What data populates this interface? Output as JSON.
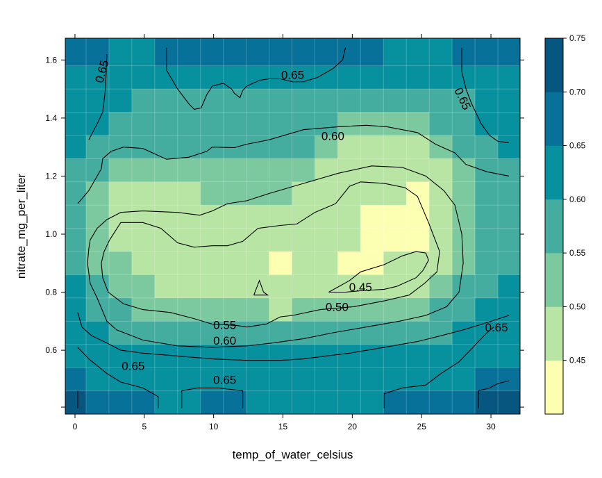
{
  "chart_data": {
    "type": "heatmap",
    "subtype": "levelplot-with-contours",
    "xlabel": "temp_of_water_celsius",
    "ylabel": "nitrate_mg_per_liter",
    "xlim": [
      -0.7,
      32.1
    ],
    "ylim": [
      0.38,
      1.675
    ],
    "x_ticks": [
      "0",
      "5",
      "10",
      "15",
      "20",
      "25",
      "30"
    ],
    "y_ticks": [
      "0.6",
      "0.8",
      "1.0",
      "1.2",
      "1.4",
      "1.6"
    ],
    "x_grid": [
      0,
      1.6,
      3.3,
      4.9,
      6.6,
      8.2,
      9.9,
      11.5,
      13.2,
      14.8,
      16.5,
      18.1,
      19.8,
      21.4,
      23.1,
      24.7,
      26.4,
      28.0,
      29.7,
      31.3
    ],
    "y_grid": [
      0.42,
      0.5,
      0.58,
      0.66,
      0.74,
      0.82,
      0.9,
      0.98,
      1.06,
      1.14,
      1.22,
      1.3,
      1.38,
      1.46,
      1.54,
      1.62
    ],
    "z_rows_top_to_bottom": [
      [
        0.66,
        0.66,
        0.64,
        0.64,
        0.66,
        0.66,
        0.66,
        0.66,
        0.66,
        0.66,
        0.66,
        0.66,
        0.66,
        0.67,
        0.64,
        0.64,
        0.64,
        0.66,
        0.66,
        0.66
      ],
      [
        0.66,
        0.66,
        0.64,
        0.64,
        0.64,
        0.66,
        0.66,
        0.66,
        0.66,
        0.64,
        0.64,
        0.64,
        0.64,
        0.64,
        0.64,
        0.64,
        0.64,
        0.66,
        0.66,
        0.66
      ],
      [
        0.66,
        0.66,
        0.62,
        0.62,
        0.62,
        0.64,
        0.66,
        0.64,
        0.64,
        0.64,
        0.62,
        0.62,
        0.62,
        0.62,
        0.62,
        0.62,
        0.62,
        0.66,
        0.64,
        0.64
      ],
      [
        0.66,
        0.66,
        0.62,
        0.62,
        0.62,
        0.62,
        0.62,
        0.62,
        0.62,
        0.62,
        0.62,
        0.62,
        0.62,
        0.62,
        0.62,
        0.62,
        0.62,
        0.62,
        0.66,
        0.66
      ],
      [
        0.62,
        0.62,
        0.62,
        0.62,
        0.62,
        0.62,
        0.62,
        0.62,
        0.62,
        0.62,
        0.62,
        0.62,
        0.62,
        0.62,
        0.62,
        0.62,
        0.62,
        0.62,
        0.64,
        0.64
      ],
      [
        0.62,
        0.62,
        0.62,
        0.58,
        0.58,
        0.58,
        0.58,
        0.58,
        0.58,
        0.58,
        0.58,
        0.58,
        0.58,
        0.58,
        0.58,
        0.58,
        0.58,
        0.58,
        0.62,
        0.62
      ],
      [
        0.62,
        0.62,
        0.58,
        0.58,
        0.58,
        0.58,
        0.58,
        0.58,
        0.58,
        0.58,
        0.58,
        0.58,
        0.54,
        0.54,
        0.54,
        0.54,
        0.58,
        0.58,
        0.62,
        0.62
      ],
      [
        0.62,
        0.58,
        0.58,
        0.58,
        0.58,
        0.58,
        0.58,
        0.58,
        0.58,
        0.58,
        0.58,
        0.54,
        0.48,
        0.48,
        0.48,
        0.48,
        0.54,
        0.58,
        0.58,
        0.62
      ],
      [
        0.58,
        0.58,
        0.54,
        0.54,
        0.54,
        0.54,
        0.54,
        0.54,
        0.54,
        0.54,
        0.54,
        0.48,
        0.48,
        0.48,
        0.48,
        0.48,
        0.48,
        0.54,
        0.58,
        0.58
      ],
      [
        0.58,
        0.54,
        0.48,
        0.48,
        0.48,
        0.48,
        0.54,
        0.54,
        0.54,
        0.54,
        0.48,
        0.48,
        0.48,
        0.48,
        0.48,
        0.43,
        0.48,
        0.54,
        0.58,
        0.58
      ],
      [
        0.58,
        0.54,
        0.48,
        0.48,
        0.48,
        0.48,
        0.48,
        0.48,
        0.48,
        0.48,
        0.48,
        0.48,
        0.48,
        0.43,
        0.43,
        0.43,
        0.48,
        0.54,
        0.58,
        0.58
      ],
      [
        0.58,
        0.54,
        0.48,
        0.48,
        0.48,
        0.48,
        0.48,
        0.48,
        0.48,
        0.48,
        0.48,
        0.48,
        0.48,
        0.43,
        0.43,
        0.43,
        0.48,
        0.54,
        0.58,
        0.58
      ],
      [
        0.58,
        0.54,
        0.54,
        0.48,
        0.48,
        0.48,
        0.48,
        0.48,
        0.48,
        0.43,
        0.48,
        0.48,
        0.43,
        0.43,
        0.48,
        0.48,
        0.48,
        0.54,
        0.58,
        0.58
      ],
      [
        0.62,
        0.58,
        0.54,
        0.54,
        0.48,
        0.48,
        0.48,
        0.48,
        0.48,
        0.48,
        0.48,
        0.48,
        0.48,
        0.48,
        0.48,
        0.48,
        0.54,
        0.58,
        0.58,
        0.62
      ],
      [
        0.62,
        0.58,
        0.58,
        0.54,
        0.54,
        0.54,
        0.54,
        0.54,
        0.54,
        0.48,
        0.54,
        0.54,
        0.54,
        0.54,
        0.54,
        0.54,
        0.58,
        0.58,
        0.62,
        0.62
      ],
      [
        0.62,
        0.62,
        0.58,
        0.58,
        0.58,
        0.58,
        0.58,
        0.58,
        0.58,
        0.58,
        0.58,
        0.58,
        0.58,
        0.58,
        0.58,
        0.58,
        0.58,
        0.62,
        0.62,
        0.62
      ],
      [
        0.64,
        0.62,
        0.62,
        0.62,
        0.62,
        0.62,
        0.62,
        0.62,
        0.62,
        0.62,
        0.62,
        0.62,
        0.62,
        0.62,
        0.62,
        0.62,
        0.62,
        0.62,
        0.64,
        0.64
      ],
      [
        0.68,
        0.64,
        0.64,
        0.62,
        0.62,
        0.62,
        0.62,
        0.62,
        0.62,
        0.62,
        0.62,
        0.62,
        0.62,
        0.62,
        0.64,
        0.64,
        0.64,
        0.64,
        0.66,
        0.66
      ],
      [
        0.7,
        0.66,
        0.66,
        0.66,
        0.62,
        0.62,
        0.66,
        0.66,
        0.64,
        0.62,
        0.62,
        0.62,
        0.62,
        0.62,
        0.66,
        0.66,
        0.66,
        0.66,
        0.7,
        0.7
      ]
    ],
    "color_breaks": [
      0.4,
      0.45,
      0.5,
      0.55,
      0.6,
      0.65,
      0.7,
      0.75
    ],
    "colors": [
      "#FCFFB2",
      "#B9E5A4",
      "#7CC9A0",
      "#44ADA0",
      "#07909D",
      "#077199",
      "#075680"
    ],
    "colorkey_labels": [
      "0.45",
      "0.50",
      "0.55",
      "0.60",
      "0.65",
      "0.70",
      "0.75"
    ],
    "contour_levels": [
      "0.45",
      "0.50",
      "0.55",
      "0.60",
      "0.65"
    ],
    "contour_labels": [
      {
        "text": "0.45",
        "x": 20.6,
        "y": 0.815,
        "rot": 0
      },
      {
        "text": "0.50",
        "x": 18.9,
        "y": 0.746,
        "rot": 0
      },
      {
        "text": "0.55",
        "x": 10.8,
        "y": 0.684,
        "rot": 0
      },
      {
        "text": "0.60",
        "x": 10.8,
        "y": 0.63,
        "rot": 0
      },
      {
        "text": "0.60",
        "x": 18.6,
        "y": 1.335,
        "rot": 0
      },
      {
        "text": "0.65",
        "x": 4.2,
        "y": 0.543,
        "rot": 0
      },
      {
        "text": "0.65",
        "x": 10.8,
        "y": 0.495,
        "rot": 0
      },
      {
        "text": "0.65",
        "x": 15.7,
        "y": 1.546,
        "rot": 0
      },
      {
        "text": "0.65",
        "x": 30.4,
        "y": 0.675,
        "rot": 0
      },
      {
        "text": "0.65",
        "x": 2.0,
        "y": 1.56,
        "rot": -75
      },
      {
        "text": "0.65",
        "x": 27.9,
        "y": 1.465,
        "rot": 65
      }
    ],
    "contour_lines": [
      [
        [
          1.0,
          1.325
        ],
        [
          1.6,
          1.38
        ],
        [
          2.0,
          1.42
        ],
        [
          2.2,
          1.5
        ],
        [
          2.3,
          1.62
        ]
      ],
      [
        [
          6.6,
          1.642
        ],
        [
          6.6,
          1.565
        ],
        [
          7.4,
          1.5
        ],
        [
          8.2,
          1.45
        ],
        [
          8.6,
          1.43
        ],
        [
          9.1,
          1.435
        ],
        [
          9.5,
          1.48
        ],
        [
          9.9,
          1.51
        ],
        [
          10.7,
          1.52
        ],
        [
          11.3,
          1.5
        ],
        [
          11.5,
          1.485
        ],
        [
          11.9,
          1.47
        ],
        [
          12.1,
          1.495
        ],
        [
          12.4,
          1.51
        ],
        [
          13.3,
          1.53
        ],
        [
          14.0,
          1.535
        ],
        [
          14.8,
          1.535
        ],
        [
          15.7,
          1.525
        ],
        [
          16.5,
          1.525
        ],
        [
          17.5,
          1.54
        ],
        [
          18.6,
          1.57
        ],
        [
          19.3,
          1.6
        ],
        [
          19.5,
          1.642
        ]
      ],
      [
        [
          27.9,
          1.642
        ],
        [
          27.9,
          1.56
        ],
        [
          28.2,
          1.5
        ],
        [
          28.6,
          1.45
        ],
        [
          29.3,
          1.38
        ],
        [
          29.9,
          1.34
        ],
        [
          30.5,
          1.32
        ],
        [
          31.3,
          1.315
        ]
      ],
      [
        [
          0.2,
          1.105
        ],
        [
          1.0,
          1.15
        ],
        [
          1.9,
          1.225
        ],
        [
          2.0,
          1.26
        ],
        [
          2.6,
          1.285
        ],
        [
          3.5,
          1.3
        ],
        [
          4.9,
          1.295
        ],
        [
          6.6,
          1.258
        ],
        [
          8.2,
          1.265
        ],
        [
          9.5,
          1.285
        ],
        [
          9.9,
          1.3
        ],
        [
          11.5,
          1.298
        ],
        [
          12.4,
          1.31
        ],
        [
          14.0,
          1.325
        ],
        [
          16.5,
          1.36
        ],
        [
          19.0,
          1.37
        ],
        [
          21.0,
          1.375
        ],
        [
          22.5,
          1.37
        ],
        [
          24.7,
          1.35
        ],
        [
          26.0,
          1.31
        ],
        [
          27.4,
          1.28
        ],
        [
          28.2,
          1.24
        ],
        [
          29.7,
          1.215
        ],
        [
          31.3,
          1.2
        ]
      ],
      [
        [
          0.2,
          0.73
        ],
        [
          0.5,
          0.68
        ],
        [
          1.2,
          0.65
        ],
        [
          2.3,
          0.625
        ],
        [
          3.3,
          0.6
        ],
        [
          4.9,
          0.59
        ],
        [
          7.4,
          0.58
        ],
        [
          9.9,
          0.57
        ],
        [
          12.4,
          0.565
        ],
        [
          14.8,
          0.565
        ],
        [
          16.5,
          0.57
        ],
        [
          18.1,
          0.58
        ],
        [
          19.8,
          0.59
        ],
        [
          22.3,
          0.61
        ],
        [
          24.7,
          0.63
        ],
        [
          26.4,
          0.65
        ],
        [
          28.0,
          0.67
        ],
        [
          29.7,
          0.695
        ],
        [
          31.3,
          0.72
        ]
      ],
      [
        [
          0.2,
          0.61
        ],
        [
          1.0,
          0.57
        ],
        [
          2.3,
          0.52
        ],
        [
          3.3,
          0.49
        ],
        [
          4.9,
          0.47
        ],
        [
          6.0,
          0.44
        ],
        [
          6.0,
          0.4
        ]
      ],
      [
        [
          0.2,
          0.4
        ],
        [
          0.2,
          0.45
        ],
        [
          0.2,
          0.46
        ]
      ],
      [
        [
          7.7,
          0.4
        ],
        [
          7.7,
          0.46
        ],
        [
          8.8,
          0.47
        ],
        [
          10.4,
          0.47
        ],
        [
          12.1,
          0.46
        ],
        [
          12.1,
          0.4
        ]
      ],
      [
        [
          22.3,
          0.4
        ],
        [
          22.3,
          0.45
        ],
        [
          23.6,
          0.47
        ],
        [
          25.3,
          0.48
        ],
        [
          26.4,
          0.52
        ],
        [
          27.7,
          0.56
        ],
        [
          28.5,
          0.6
        ],
        [
          29.1,
          0.63
        ],
        [
          29.7,
          0.66
        ],
        [
          30.2,
          0.68
        ]
      ],
      [
        [
          29.1,
          0.4
        ],
        [
          29.1,
          0.46
        ],
        [
          29.9,
          0.47
        ],
        [
          30.5,
          0.485
        ],
        [
          31.3,
          0.495
        ]
      ],
      [
        [
          1.1,
          0.98
        ],
        [
          1.6,
          1.02
        ],
        [
          2.3,
          1.05
        ],
        [
          3.3,
          1.075
        ],
        [
          4.9,
          1.08
        ],
        [
          7.4,
          1.075
        ],
        [
          9.0,
          1.065
        ],
        [
          9.9,
          1.08
        ],
        [
          11.0,
          1.105
        ],
        [
          12.4,
          1.115
        ],
        [
          14.0,
          1.14
        ],
        [
          16.5,
          1.175
        ],
        [
          19.0,
          1.21
        ],
        [
          21.4,
          1.235
        ],
        [
          23.6,
          1.23
        ],
        [
          25.3,
          1.2
        ],
        [
          26.6,
          1.15
        ],
        [
          27.4,
          1.1
        ],
        [
          27.9,
          1.0
        ],
        [
          28.0,
          0.9
        ],
        [
          27.7,
          0.8
        ],
        [
          26.8,
          0.75
        ],
        [
          25.3,
          0.72
        ],
        [
          23.4,
          0.7
        ],
        [
          21.0,
          0.68
        ],
        [
          18.6,
          0.66
        ],
        [
          16.5,
          0.64
        ],
        [
          14.3,
          0.625
        ],
        [
          12.4,
          0.615
        ],
        [
          9.9,
          0.61
        ],
        [
          7.4,
          0.615
        ],
        [
          4.9,
          0.635
        ],
        [
          3.0,
          0.67
        ],
        [
          2.3,
          0.7
        ],
        [
          1.6,
          0.78
        ],
        [
          1.1,
          0.83
        ],
        [
          0.9,
          0.9
        ],
        [
          1.0,
          0.95
        ],
        [
          1.1,
          0.98
        ]
      ],
      [
        [
          2.5,
          0.98
        ],
        [
          3.3,
          1.04
        ],
        [
          4.9,
          1.04
        ],
        [
          6.2,
          1.02
        ],
        [
          7.4,
          0.97
        ],
        [
          8.6,
          0.955
        ],
        [
          9.9,
          0.96
        ],
        [
          11.0,
          0.96
        ],
        [
          12.1,
          0.975
        ],
        [
          13.2,
          1.02
        ],
        [
          14.8,
          1.03
        ],
        [
          16.0,
          1.035
        ],
        [
          17.3,
          1.075
        ],
        [
          18.8,
          1.105
        ],
        [
          19.8,
          1.165
        ],
        [
          20.6,
          1.18
        ],
        [
          22.3,
          1.175
        ],
        [
          23.8,
          1.16
        ],
        [
          24.7,
          1.13
        ],
        [
          25.5,
          1.04
        ],
        [
          26.3,
          0.94
        ],
        [
          26.1,
          0.87
        ],
        [
          25.2,
          0.83
        ],
        [
          24.1,
          0.79
        ],
        [
          22.3,
          0.77
        ],
        [
          20.1,
          0.75
        ],
        [
          17.7,
          0.74
        ],
        [
          15.7,
          0.72
        ],
        [
          14.8,
          0.715
        ],
        [
          13.8,
          0.69
        ],
        [
          12.4,
          0.68
        ],
        [
          11.7,
          0.685
        ],
        [
          9.9,
          0.69
        ],
        [
          8.5,
          0.71
        ],
        [
          6.9,
          0.73
        ],
        [
          4.9,
          0.74
        ],
        [
          3.5,
          0.76
        ],
        [
          2.4,
          0.8
        ],
        [
          2.0,
          0.85
        ],
        [
          1.9,
          0.9
        ],
        [
          2.1,
          0.94
        ],
        [
          2.5,
          0.98
        ]
      ],
      [
        [
          18.3,
          0.8
        ],
        [
          19.8,
          0.84
        ],
        [
          20.6,
          0.87
        ],
        [
          22.3,
          0.895
        ],
        [
          23.6,
          0.925
        ],
        [
          24.6,
          0.94
        ],
        [
          25.3,
          0.935
        ],
        [
          25.5,
          0.91
        ],
        [
          25.1,
          0.875
        ],
        [
          24.6,
          0.85
        ],
        [
          23.2,
          0.82
        ],
        [
          22.3,
          0.81
        ],
        [
          20.6,
          0.805
        ],
        [
          19.5,
          0.8
        ],
        [
          18.3,
          0.8
        ]
      ],
      [
        [
          12.9,
          0.79
        ],
        [
          13.3,
          0.84
        ],
        [
          13.6,
          0.8
        ],
        [
          13.9,
          0.79
        ],
        [
          12.9,
          0.79
        ]
      ]
    ]
  },
  "colors": {
    "frame": "#000000",
    "contour": "#000000"
  }
}
